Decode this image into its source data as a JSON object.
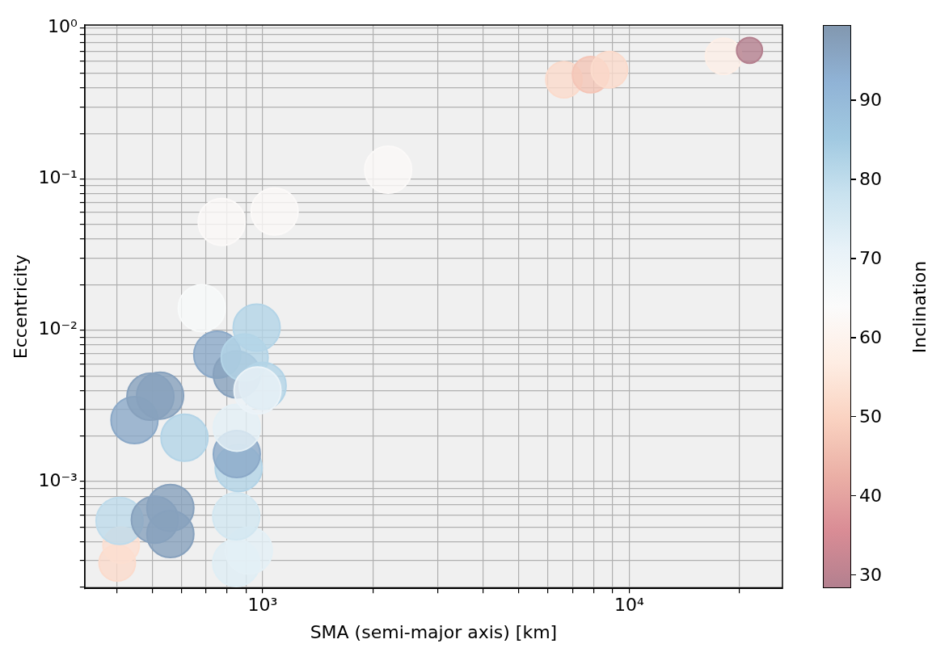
{
  "chart_data": {
    "type": "bubble",
    "xlabel": "SMA (semi-major axis) [km]",
    "ylabel": "Eccentricity",
    "clabel": "Inclination",
    "log": "xy",
    "grid": true,
    "xlim": [
      327,
      26200
    ],
    "ylim": [
      0.000197,
      1.04
    ],
    "xticks": [
      {
        "value": 400,
        "label": null
      },
      {
        "value": 500,
        "label": null
      },
      {
        "value": 600,
        "label": null
      },
      {
        "value": 700,
        "label": null
      },
      {
        "value": 800,
        "label": null
      },
      {
        "value": 900,
        "label": null
      },
      {
        "value": 1000,
        "label": "10³"
      },
      {
        "value": 2000,
        "label": null
      },
      {
        "value": 3000,
        "label": null
      },
      {
        "value": 4000,
        "label": null
      },
      {
        "value": 5000,
        "label": null
      },
      {
        "value": 6000,
        "label": null
      },
      {
        "value": 7000,
        "label": null
      },
      {
        "value": 8000,
        "label": null
      },
      {
        "value": 9000,
        "label": null
      },
      {
        "value": 10000,
        "label": "10⁴"
      },
      {
        "value": 20000,
        "label": null
      }
    ],
    "yticks": [
      {
        "value": 0.0002,
        "label": null
      },
      {
        "value": 0.0003,
        "label": null
      },
      {
        "value": 0.0004,
        "label": null
      },
      {
        "value": 0.0005,
        "label": null
      },
      {
        "value": 0.0006,
        "label": null
      },
      {
        "value": 0.0007,
        "label": null
      },
      {
        "value": 0.0008,
        "label": null
      },
      {
        "value": 0.0009,
        "label": null
      },
      {
        "value": 0.001,
        "label": "10⁻³"
      },
      {
        "value": 0.002,
        "label": null
      },
      {
        "value": 0.003,
        "label": null
      },
      {
        "value": 0.004,
        "label": null
      },
      {
        "value": 0.005,
        "label": null
      },
      {
        "value": 0.006,
        "label": null
      },
      {
        "value": 0.007,
        "label": null
      },
      {
        "value": 0.008,
        "label": null
      },
      {
        "value": 0.009,
        "label": null
      },
      {
        "value": 0.01,
        "label": "10⁻²"
      },
      {
        "value": 0.02,
        "label": null
      },
      {
        "value": 0.03,
        "label": null
      },
      {
        "value": 0.04,
        "label": null
      },
      {
        "value": 0.05,
        "label": null
      },
      {
        "value": 0.06,
        "label": null
      },
      {
        "value": 0.07,
        "label": null
      },
      {
        "value": 0.08,
        "label": null
      },
      {
        "value": 0.09,
        "label": null
      },
      {
        "value": 0.1,
        "label": "10⁻¹"
      },
      {
        "value": 0.2,
        "label": null
      },
      {
        "value": 0.3,
        "label": null
      },
      {
        "value": 0.4,
        "label": null
      },
      {
        "value": 0.5,
        "label": null
      },
      {
        "value": 0.6,
        "label": null
      },
      {
        "value": 0.7,
        "label": null
      },
      {
        "value": 0.8,
        "label": null
      },
      {
        "value": 0.9,
        "label": null
      },
      {
        "value": 1,
        "label": "10⁰"
      }
    ],
    "clim": [
      28.3,
      99.5
    ],
    "cticks": [
      30,
      40,
      50,
      60,
      70,
      80,
      90
    ],
    "x": [
      401,
      411,
      407,
      508,
      560,
      560,
      847,
      917,
      847,
      860,
      850,
      850,
      612,
      447,
      494,
      525,
      752,
      850,
      893,
      963,
      1000,
      968,
      773,
      1078,
      2200,
      682,
      6640,
      7850,
      8830,
      18100,
      21300
    ],
    "values": [
      0.00029,
      0.00038,
      0.00055,
      0.00056,
      0.00067,
      0.00045,
      0.00029,
      0.00035,
      0.00059,
      0.00123,
      0.00152,
      0.00227,
      0.00195,
      0.00255,
      0.00364,
      0.0037,
      0.0069,
      0.0051,
      0.0066,
      0.0104,
      0.0043,
      0.004,
      0.052,
      0.061,
      0.115,
      0.014,
      0.453,
      0.489,
      0.527,
      0.647,
      0.708
    ],
    "cvalues": [
      52,
      53,
      80,
      97,
      97,
      97,
      73,
      72,
      76,
      82,
      95,
      72,
      82,
      95,
      97,
      97,
      95,
      97,
      82,
      82,
      82,
      70,
      63,
      63,
      63,
      65,
      52,
      47,
      52,
      58,
      28.5
    ],
    "sizes": [
      0.6,
      0.6,
      1,
      1,
      1,
      1,
      1,
      1,
      1,
      1,
      1,
      1,
      1,
      1,
      1,
      1,
      1,
      1,
      1,
      1,
      1,
      1,
      1,
      1,
      1,
      1,
      0.6,
      0.6,
      0.6,
      0.6,
      0.3
    ]
  }
}
